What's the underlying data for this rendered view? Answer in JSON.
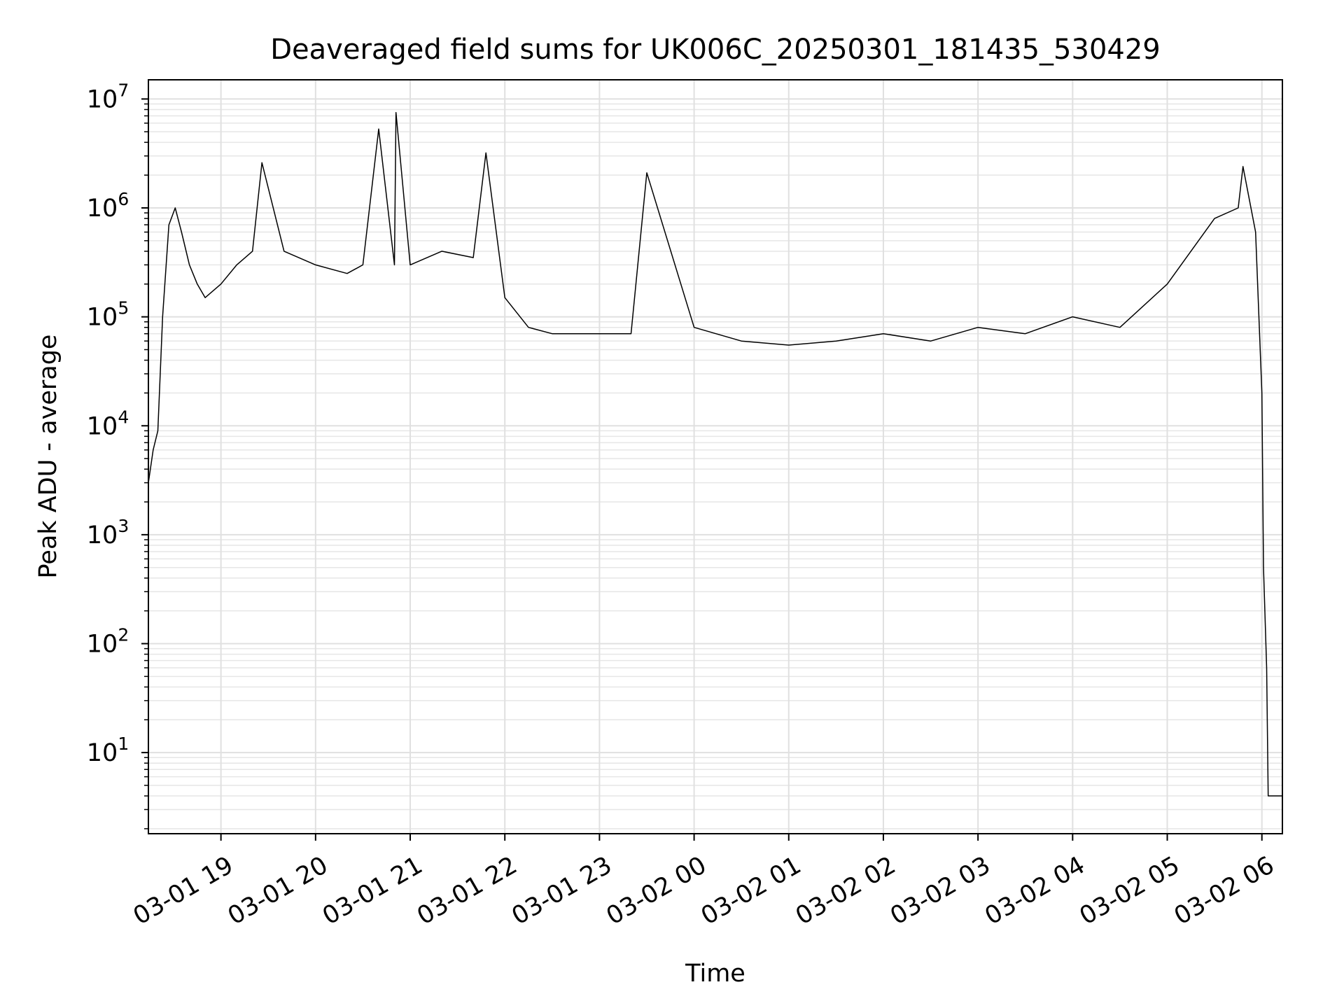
{
  "chart_data": {
    "type": "line",
    "title": "Deaveraged field sums for UK006C_20250301_181435_530429",
    "xlabel": "Time",
    "ylabel": "Peak ADU - average",
    "yscale": "log",
    "ylim": [
      1.8,
      15000000
    ],
    "xlim": [
      "2025-03-01 18:14",
      "2025-03-02 06:13"
    ],
    "grid": true,
    "grid_which": "major and minor",
    "line_color": "#000000",
    "x_ticks": [
      {
        "t": "2025-03-01 19:00",
        "label": "03-01 19"
      },
      {
        "t": "2025-03-01 20:00",
        "label": "03-01 20"
      },
      {
        "t": "2025-03-01 21:00",
        "label": "03-01 21"
      },
      {
        "t": "2025-03-01 22:00",
        "label": "03-01 22"
      },
      {
        "t": "2025-03-01 23:00",
        "label": "03-01 23"
      },
      {
        "t": "2025-03-02 00:00",
        "label": "03-02 00"
      },
      {
        "t": "2025-03-02 01:00",
        "label": "03-02 01"
      },
      {
        "t": "2025-03-02 02:00",
        "label": "03-02 02"
      },
      {
        "t": "2025-03-02 03:00",
        "label": "03-02 03"
      },
      {
        "t": "2025-03-02 04:00",
        "label": "03-02 04"
      },
      {
        "t": "2025-03-02 05:00",
        "label": "03-02 05"
      },
      {
        "t": "2025-03-02 06:00",
        "label": "03-02 06"
      }
    ],
    "y_ticks": [
      {
        "v": 10,
        "mant": "10",
        "exp": "1"
      },
      {
        "v": 100,
        "mant": "10",
        "exp": "2"
      },
      {
        "v": 1000,
        "mant": "10",
        "exp": "3"
      },
      {
        "v": 10000,
        "mant": "10",
        "exp": "4"
      },
      {
        "v": 100000,
        "mant": "10",
        "exp": "5"
      },
      {
        "v": 1000000,
        "mant": "10",
        "exp": "6"
      },
      {
        "v": 10000000,
        "mant": "10",
        "exp": "7"
      }
    ],
    "series": [
      {
        "x": [
          "2025-03-01 18:14",
          "2025-03-01 18:17",
          "2025-03-01 18:20",
          "2025-03-01 18:23",
          "2025-03-01 18:27",
          "2025-03-01 18:31",
          "2025-03-01 18:35",
          "2025-03-01 18:40",
          "2025-03-01 18:45",
          "2025-03-01 18:50",
          "2025-03-01 19:00",
          "2025-03-01 19:10",
          "2025-03-01 19:20",
          "2025-03-01 19:26",
          "2025-03-01 19:40",
          "2025-03-01 20:00",
          "2025-03-01 20:20",
          "2025-03-01 20:30",
          "2025-03-01 20:40",
          "2025-03-01 20:50",
          "2025-03-01 20:51",
          "2025-03-01 21:00",
          "2025-03-01 21:20",
          "2025-03-01 21:40",
          "2025-03-01 21:48",
          "2025-03-01 22:00",
          "2025-03-01 22:15",
          "2025-03-01 22:30",
          "2025-03-01 23:00",
          "2025-03-01 23:20",
          "2025-03-01 23:30",
          "2025-03-02 00:00",
          "2025-03-02 00:30",
          "2025-03-02 01:00",
          "2025-03-02 01:30",
          "2025-03-02 02:00",
          "2025-03-02 02:30",
          "2025-03-02 03:00",
          "2025-03-02 03:30",
          "2025-03-02 04:00",
          "2025-03-02 04:30",
          "2025-03-02 05:00",
          "2025-03-02 05:30",
          "2025-03-02 05:45",
          "2025-03-02 05:48",
          "2025-03-02 05:52",
          "2025-03-02 05:56",
          "2025-03-02 06:00",
          "2025-03-02 06:01",
          "2025-03-02 06:03",
          "2025-03-02 06:04",
          "2025-03-02 06:13"
        ],
        "y": [
          3000,
          6000,
          9000,
          100000,
          700000,
          1000000,
          600000,
          300000,
          200000,
          150000,
          200000,
          300000,
          400000,
          2600000,
          400000,
          300000,
          250000,
          300000,
          5300000,
          300000,
          7500000,
          300000,
          400000,
          350000,
          3200000,
          150000,
          80000,
          70000,
          70000,
          70000,
          2100000,
          80000,
          60000,
          55000,
          60000,
          70000,
          60000,
          80000,
          70000,
          100000,
          80000,
          200000,
          800000,
          1000000,
          2400000,
          1200000,
          600000,
          20000,
          500,
          60,
          4,
          4
        ]
      }
    ]
  }
}
